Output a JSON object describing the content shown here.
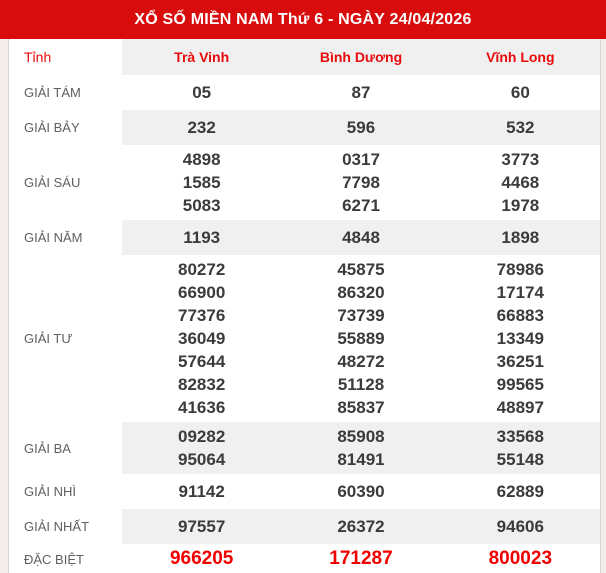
{
  "title": "XỔ SỐ MIỀN NAM Thứ 6 - NGÀY 24/04/2026",
  "columns": {
    "label": "Tỉnh",
    "provinces": [
      "Trà Vinh",
      "Bình Dương",
      "Vĩnh Long"
    ]
  },
  "prizes": [
    {
      "label": "GIẢI TÁM",
      "striped": false,
      "special": false,
      "values": [
        [
          "05"
        ],
        [
          "87"
        ],
        [
          "60"
        ]
      ]
    },
    {
      "label": "GIẢI BẢY",
      "striped": true,
      "special": false,
      "values": [
        [
          "232"
        ],
        [
          "596"
        ],
        [
          "532"
        ]
      ]
    },
    {
      "label": "GIẢI SÁU",
      "striped": false,
      "special": false,
      "values": [
        [
          "4898",
          "1585",
          "5083"
        ],
        [
          "0317",
          "7798",
          "6271"
        ],
        [
          "3773",
          "4468",
          "1978"
        ]
      ]
    },
    {
      "label": "GIẢI NĂM",
      "striped": true,
      "special": false,
      "values": [
        [
          "1193"
        ],
        [
          "4848"
        ],
        [
          "1898"
        ]
      ]
    },
    {
      "label": "GIẢI TƯ",
      "striped": false,
      "special": false,
      "values": [
        [
          "80272",
          "66900",
          "77376",
          "36049",
          "57644",
          "82832",
          "41636"
        ],
        [
          "45875",
          "86320",
          "73739",
          "55889",
          "48272",
          "51128",
          "85837"
        ],
        [
          "78986",
          "17174",
          "66883",
          "13349",
          "36251",
          "99565",
          "48897"
        ]
      ]
    },
    {
      "label": "GIẢI BA",
      "striped": true,
      "special": false,
      "values": [
        [
          "09282",
          "95064"
        ],
        [
          "85908",
          "81491"
        ],
        [
          "33568",
          "55148"
        ]
      ]
    },
    {
      "label": "GIẢI NHÌ",
      "striped": false,
      "special": false,
      "values": [
        [
          "91142"
        ],
        [
          "60390"
        ],
        [
          "62889"
        ]
      ]
    },
    {
      "label": "GIẢI NHẤT",
      "striped": true,
      "special": false,
      "values": [
        [
          "97557"
        ],
        [
          "26372"
        ],
        [
          "94606"
        ]
      ]
    },
    {
      "label": "ĐẶC BIỆT",
      "striped": false,
      "special": true,
      "values": [
        [
          "966205"
        ],
        [
          "171287"
        ],
        [
          "800023"
        ]
      ]
    }
  ],
  "colors": {
    "banner_red": "#d80c0c",
    "text_red": "#e80b0b",
    "special_red": "#f10000",
    "stripe_gray": "#f0f0f0",
    "number_dark": "#3a3b3d",
    "label_gray": "#5d6064",
    "page_background": "#f2ecec"
  }
}
